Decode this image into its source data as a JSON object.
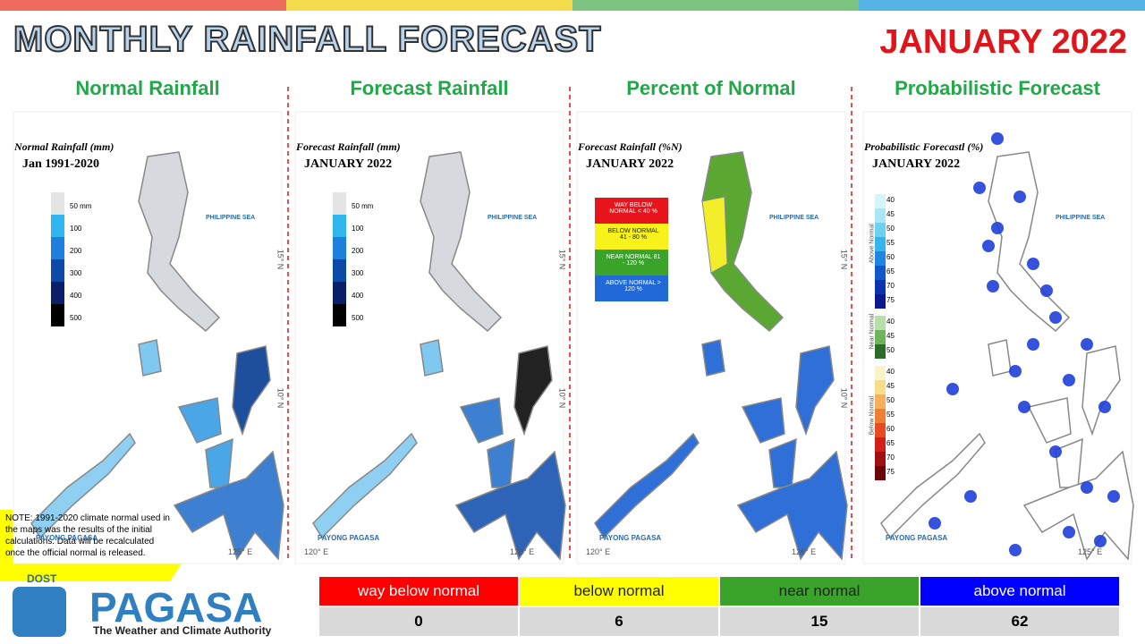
{
  "header": {
    "title": "MONTHLY RAINFALL FORECAST",
    "period": "JANUARY 2022"
  },
  "panels": [
    {
      "title": "Normal Rainfall",
      "map_title": "Normal Rainfall (mm)",
      "map_subtitle": "Jan 1991-2020",
      "sea_label": "PHILIPPINE SEA",
      "legend": [
        "50 mm",
        "100",
        "200",
        "300",
        "400",
        "500"
      ]
    },
    {
      "title": "Forecast Rainfall",
      "map_title": "Forecast Rainfall (mm)",
      "map_subtitle": "JANUARY 2022",
      "sea_label": "PHILIPPINE SEA",
      "legend": [
        "50 mm",
        "100",
        "200",
        "300",
        "400",
        "500"
      ]
    },
    {
      "title": "Percent of Normal",
      "map_title": "Forecast Rainfall (%N)",
      "map_subtitle": "JANUARY 2022",
      "sea_label": "PHILIPPINE SEA",
      "legend": [
        "WAY BELOW NORMAL < 40 %",
        "BELOW NORMAL 41 - 80 %",
        "NEAR NORMAL 81 - 120 %",
        "ABOVE NORMAL > 120 %"
      ]
    },
    {
      "title": "Probabilistic Forecast",
      "map_title": "Probabilistic Forecastl (%)",
      "map_subtitle": "JANUARY 2022",
      "sea_label": "PHILIPPINE SEA",
      "groups": [
        {
          "name": "Above Normal",
          "levels": [
            "40",
            "45",
            "50",
            "55",
            "60",
            "65",
            "70",
            "75"
          ]
        },
        {
          "name": "Near Normal",
          "levels": [
            "40",
            "45",
            "50"
          ]
        },
        {
          "name": "Below Normal",
          "levels": [
            "40",
            "45",
            "50",
            "55",
            "60",
            "65",
            "70",
            "75"
          ]
        }
      ]
    }
  ],
  "axis_labels": [
    "125° E",
    "120° E",
    "15° N",
    "10° N"
  ],
  "note": "NOTE: 1991-2020 climate normal used in the maps was the results of the initial calculations. Data will be recalculated once the official normal is released.",
  "summary": {
    "headers": [
      "way below normal",
      "below normal",
      "near normal",
      "above normal"
    ],
    "values": [
      "0",
      "6",
      "15",
      "62"
    ]
  },
  "logo": {
    "dept": "DOST",
    "name": "PAGASA",
    "tagline": "The Weather and Climate Authority",
    "brand": "PAYONG PAGASA"
  }
}
